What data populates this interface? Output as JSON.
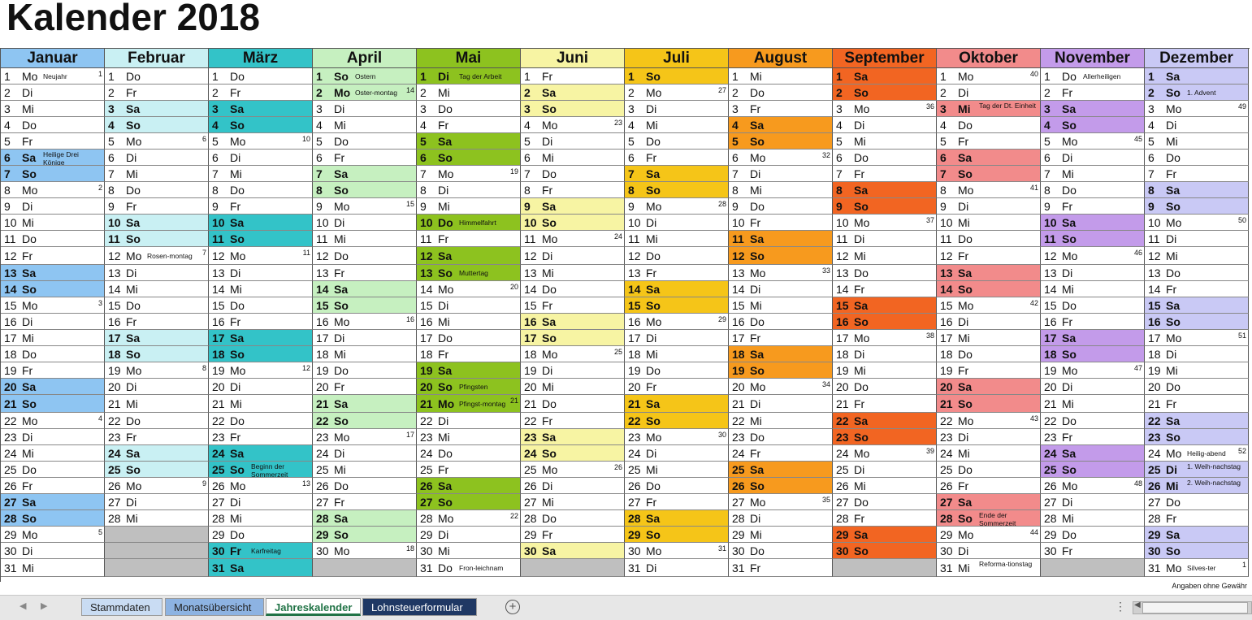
{
  "title": "Kalender 2018",
  "footer_note": "Angaben ohne Gewähr",
  "tabs": [
    {
      "label": "Stammdaten",
      "bg": "#c9dcf3",
      "active": false
    },
    {
      "label": "Monatsübersicht",
      "bg": "#8db3e2",
      "active": false
    },
    {
      "label": "Jahreskalender",
      "bg": "#ffffff",
      "active": true
    },
    {
      "label": "Lohnsteuerformular",
      "bg": "#1f3864",
      "active": false
    }
  ],
  "icons": {
    "add_sheet": "plus-circle-icon",
    "sheet_menu": "vertical-dots-icon",
    "nav_prev": "triangle-left-icon",
    "nav_next": "triangle-right-icon"
  },
  "months": [
    {
      "name": "Januar",
      "header_color": "#8ec5f2",
      "weekend_color": "#8ec5f2",
      "start": 1,
      "days": 31,
      "holidays": {
        "1": "Neujahr",
        "6": "Heilige Drei Könige"
      },
      "kw": {
        "1": "1",
        "8": "2",
        "15": "3",
        "22": "4",
        "29": "5"
      }
    },
    {
      "name": "Februar",
      "header_color": "#c9f0f3",
      "weekend_color": "#c9f0f3",
      "start": 4,
      "days": 28,
      "holidays": {
        "12": "Rosen-montag"
      },
      "kw": {
        "5": "6",
        "12": "7",
        "19": "8",
        "26": "9"
      }
    },
    {
      "name": "März",
      "header_color": "#33c3c8",
      "weekend_color": "#33c3c8",
      "start": 4,
      "days": 31,
      "holidays": {
        "25": "Beginn der Sommerzeit",
        "30": "Karfreitag"
      },
      "kw": {
        "5": "10",
        "12": "11",
        "19": "12",
        "26": "13"
      }
    },
    {
      "name": "April",
      "header_color": "#c6f0c0",
      "weekend_color": "#c6f0c0",
      "start": 0,
      "days": 30,
      "holidays": {
        "1": "Ostern",
        "2": "Oster-montag"
      },
      "kw": {
        "2": "14",
        "9": "15",
        "16": "16",
        "23": "17",
        "30": "18"
      }
    },
    {
      "name": "Mai",
      "header_color": "#8dc21f",
      "weekend_color": "#8dc21f",
      "start": 2,
      "days": 31,
      "holidays": {
        "1": "Tag der Arbeit",
        "10": "Himmelfahrt",
        "13": "Muttertag",
        "20": "Pfingsten",
        "21": "Pfingst-montag",
        "31": "Fron-leichnam"
      },
      "kw": {
        "7": "19",
        "14": "20",
        "21": "21",
        "28": "22"
      }
    },
    {
      "name": "Juni",
      "header_color": "#f7f4a3",
      "weekend_color": "#f7f4a3",
      "start": 5,
      "days": 30,
      "holidays": {},
      "kw": {
        "4": "23",
        "11": "24",
        "18": "25",
        "25": "26"
      }
    },
    {
      "name": "Juli",
      "header_color": "#f5c518",
      "weekend_color": "#f5c518",
      "start": 0,
      "days": 31,
      "holidays": {},
      "kw": {
        "2": "27",
        "9": "28",
        "16": "29",
        "23": "30",
        "30": "31"
      }
    },
    {
      "name": "August",
      "header_color": "#f79a1e",
      "weekend_color": "#f79a1e",
      "start": 3,
      "days": 31,
      "holidays": {},
      "kw": {
        "6": "32",
        "13": "33",
        "20": "34",
        "27": "35"
      }
    },
    {
      "name": "September",
      "header_color": "#f26522",
      "weekend_color": "#f26522",
      "start": 6,
      "days": 30,
      "holidays": {},
      "kw": {
        "3": "36",
        "10": "37",
        "17": "38",
        "24": "39"
      }
    },
    {
      "name": "Oktober",
      "header_color": "#f28b8b",
      "weekend_color": "#f28b8b",
      "start": 1,
      "days": 31,
      "holidays": {
        "3": "Tag der Dt. Einheit",
        "28": "Ende der Sommerzeit",
        "31": "Reforma-tionstag"
      },
      "kw": {
        "1": "40",
        "8": "41",
        "15": "42",
        "22": "43",
        "29": "44"
      }
    },
    {
      "name": "November",
      "header_color": "#c39bea",
      "weekend_color": "#c39bea",
      "start": 4,
      "days": 30,
      "holidays": {
        "1": "Allerheiligen"
      },
      "kw": {
        "5": "45",
        "12": "46",
        "19": "47",
        "26": "48"
      }
    },
    {
      "name": "Dezember",
      "header_color": "#c9c9f5",
      "weekend_color": "#c9c9f5",
      "start": 6,
      "days": 31,
      "holidays": {
        "2": "1. Advent",
        "24": "Heilig-abend",
        "25": "1. Weih-nachstag",
        "26": "2. Weih-nachstag",
        "31": "Silves-ter"
      },
      "kw": {
        "3": "49",
        "10": "50",
        "17": "51",
        "24": "52",
        "31": "1"
      }
    }
  ],
  "weekday_labels": [
    "So",
    "Mo",
    "Di",
    "Mi",
    "Do",
    "Fr",
    "Sa"
  ],
  "holiday_weekday_bold": {
    "5": {
      "1": "Di",
      "10": "Do",
      "21": "Mo"
    },
    "10": {
      "3": "Mi"
    },
    "12": {
      "25": "Di",
      "26": "Mi"
    },
    "4": {
      "2": "Mo"
    },
    "3": {
      "30": "Fr"
    }
  }
}
